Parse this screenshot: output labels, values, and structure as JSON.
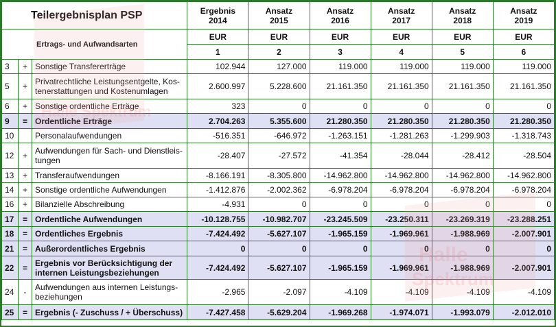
{
  "header": {
    "title": "Teilergebnisplan PSP",
    "subtitle": "Ertrags- und Aufwandsarten",
    "columns": [
      {
        "line1": "Ergebnis",
        "line2": "2014",
        "unit": "EUR",
        "index": "1"
      },
      {
        "line1": "Ansatz",
        "line2": "2015",
        "unit": "EUR",
        "index": "2"
      },
      {
        "line1": "Ansatz",
        "line2": "2016",
        "unit": "EUR",
        "index": "3"
      },
      {
        "line1": "Ansatz",
        "line2": "2017",
        "unit": "EUR",
        "index": "4"
      },
      {
        "line1": "Ansatz",
        "line2": "2018",
        "unit": "EUR",
        "index": "5"
      },
      {
        "line1": "Ansatz",
        "line2": "2019",
        "unit": "EUR",
        "index": "6"
      }
    ]
  },
  "rows": [
    {
      "nr": "3",
      "op": "+",
      "label": "Sonstige Transfererträge",
      "values": [
        "102.944",
        "127.000",
        "119.000",
        "119.000",
        "119.000",
        "119.000"
      ],
      "bold": false,
      "highlight": false
    },
    {
      "nr": "5",
      "op": "+",
      "label": "Privatrechtliche Leistungsentgelte, Kos-tenerstattungen und Kostenumlagen",
      "values": [
        "2.600.997",
        "5.228.600",
        "21.161.350",
        "21.161.350",
        "21.161.350",
        "21.161.350"
      ],
      "bold": false,
      "highlight": false
    },
    {
      "nr": "6",
      "op": "+",
      "label": "Sonstige ordentliche Erträge",
      "values": [
        "323",
        "0",
        "0",
        "0",
        "0",
        "0"
      ],
      "bold": false,
      "highlight": false
    },
    {
      "nr": "9",
      "op": "=",
      "label": "Ordentliche Erträge",
      "values": [
        "2.704.263",
        "5.355.600",
        "21.280.350",
        "21.280.350",
        "21.280.350",
        "21.280.350"
      ],
      "bold": true,
      "highlight": true
    },
    {
      "nr": "10",
      "op": "",
      "label": "Personalaufwendungen",
      "values": [
        "-516.351",
        "-646.972",
        "-1.263.151",
        "-1.281.263",
        "-1.299.903",
        "-1.318.743"
      ],
      "bold": false,
      "highlight": false
    },
    {
      "nr": "12",
      "op": "+",
      "label": "Aufwendungen für Sach- und Dienstleis-tungen",
      "values": [
        "-28.407",
        "-27.572",
        "-41.354",
        "-28.044",
        "-28.412",
        "-28.504"
      ],
      "bold": false,
      "highlight": false
    },
    {
      "nr": "13",
      "op": "+",
      "label": "Transferaufwendungen",
      "values": [
        "-8.166.191",
        "-8.305.800",
        "-14.962.800",
        "-14.962.800",
        "-14.962.800",
        "-14.962.800"
      ],
      "bold": false,
      "highlight": false
    },
    {
      "nr": "14",
      "op": "+",
      "label": "Sonstige ordentliche Aufwendungen",
      "values": [
        "-1.412.876",
        "-2.002.362",
        "-6.978.204",
        "-6.978.204",
        "-6.978.204",
        "-6.978.204"
      ],
      "bold": false,
      "highlight": false
    },
    {
      "nr": "16",
      "op": "+",
      "label": "Bilanzielle Abschreibung",
      "values": [
        "-4.931",
        "0",
        "0",
        "0",
        "0",
        "0"
      ],
      "bold": false,
      "highlight": false
    },
    {
      "nr": "17",
      "op": "=",
      "label": "Ordentliche Aufwendungen",
      "values": [
        "-10.128.755",
        "-10.982.707",
        "-23.245.509",
        "-23.250.311",
        "-23.269.319",
        "-23.288.251"
      ],
      "bold": true,
      "highlight": true
    },
    {
      "nr": "18",
      "op": "=",
      "label": "Ordentliches Ergebnis",
      "values": [
        "-7.424.492",
        "-5.627.107",
        "-1.965.159",
        "-1.969.961",
        "-1.988.969",
        "-2.007.901"
      ],
      "bold": true,
      "highlight": true
    },
    {
      "nr": "21",
      "op": "=",
      "label": "Außerordentliches Ergebnis",
      "values": [
        "0",
        "0",
        "0",
        "0",
        "0",
        "0"
      ],
      "bold": true,
      "highlight": true
    },
    {
      "nr": "22",
      "op": "=",
      "label": "Ergebnis vor Berücksichtigung der internen Leistungsbeziehungen",
      "values": [
        "-7.424.492",
        "-5.627.107",
        "-1.965.159",
        "-1.969.961",
        "-1.988.969",
        "-2.007.901"
      ],
      "bold": true,
      "highlight": true
    },
    {
      "nr": "24",
      "op": "-",
      "label": "Aufwendungen aus internen Leistungs-beziehungen",
      "values": [
        "-2.965",
        "-2.097",
        "-4.109",
        "-4.109",
        "-4.109",
        "-4.109"
      ],
      "bold": false,
      "highlight": false
    },
    {
      "nr": "25",
      "op": "=",
      "label": "Ergebnis (- Zuschuss / + Überschuss)",
      "values": [
        "-7.427.458",
        "-5.629.204",
        "-1.969.268",
        "-1.974.071",
        "-1.993.079",
        "-2.012.010"
      ],
      "bold": true,
      "highlight": true
    }
  ],
  "watermark": {
    "text": "Halle Spektrum",
    "line1": "Halle",
    "line2": "Spektrum"
  }
}
